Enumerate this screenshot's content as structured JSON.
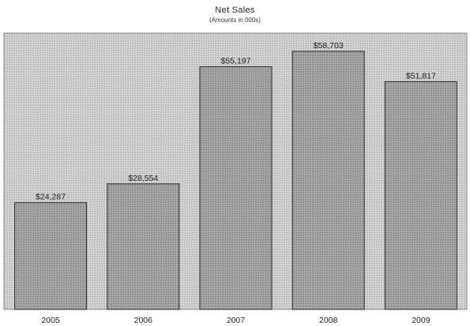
{
  "chart_data": {
    "type": "bar",
    "title": "Net Sales",
    "subtitle": "(Amounts in 000s)",
    "categories": [
      "2005",
      "2006",
      "2007",
      "2008",
      "2009"
    ],
    "values": [
      24287,
      28554,
      55197,
      58703,
      51817
    ],
    "value_labels": [
      "$24,287",
      "$28,554",
      "$55,197",
      "$58,703",
      "$51,817"
    ],
    "xlabel": "",
    "ylabel": "",
    "ylim": [
      0,
      60000
    ],
    "grid": false,
    "legend": "none"
  },
  "colors": {
    "bar_fill": "#9e9e9e",
    "bar_stroke": "#2a2a2a",
    "plot_background": "#c8c8c8",
    "text": "#222222"
  }
}
